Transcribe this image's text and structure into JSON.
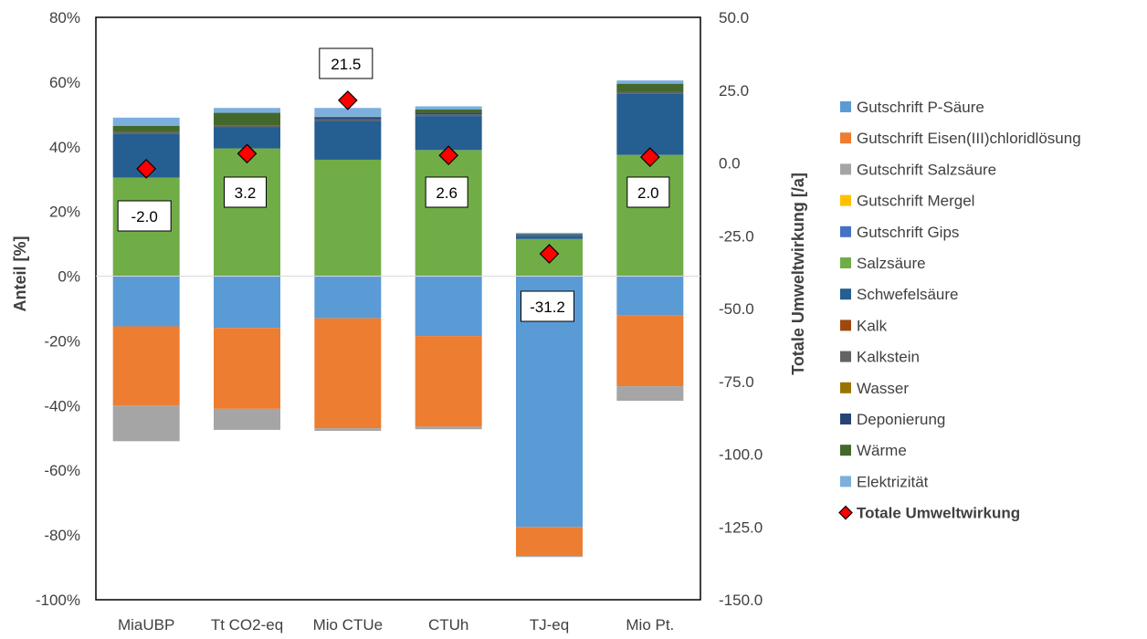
{
  "chart_data": {
    "type": "bar",
    "stacked": true,
    "categories": [
      "MiaUBP",
      "Tt CO2-eq",
      "Mio CTUe",
      "CTUh",
      "TJ-eq",
      "Mio Pt."
    ],
    "ylabel": "Anteil [%]",
    "y2label": "Totale Umweltwirkung [/a]",
    "ylim": [
      -100,
      80
    ],
    "y2lim": [
      -150,
      50
    ],
    "y_ticks": [
      "80%",
      "60%",
      "40%",
      "20%",
      "0%",
      "-20%",
      "-40%",
      "-60%",
      "-80%",
      "-100%"
    ],
    "y2_ticks": [
      "50.0",
      "25.0",
      "0.0",
      "-25.0",
      "-50.0",
      "-75.0",
      "-100.0",
      "-125.0",
      "-150.0"
    ],
    "grid": false,
    "legend_position": "right",
    "series": [
      {
        "name": "Gutschrift P-Säure",
        "color": "#5b9bd5",
        "values": [
          -15.5,
          -16.0,
          -13.0,
          -18.5,
          -77.5,
          -12.0
        ]
      },
      {
        "name": "Gutschrift Eisen(III)chloridlösung",
        "color": "#ed7d31",
        "values": [
          -24.5,
          -25.0,
          -34.0,
          -28.0,
          -9.0,
          -22.0
        ]
      },
      {
        "name": "Gutschrift Salzsäure",
        "color": "#a5a5a5",
        "values": [
          -11.0,
          -6.5,
          -0.8,
          -0.8,
          -0.3,
          -4.5
        ]
      },
      {
        "name": "Gutschrift Mergel",
        "color": "#ffc000",
        "values": [
          0,
          0,
          0,
          0,
          0,
          0
        ]
      },
      {
        "name": "Gutschrift Gips",
        "color": "#4472c4",
        "values": [
          0,
          0,
          0,
          0,
          0,
          0
        ]
      },
      {
        "name": "Salzsäure",
        "color": "#70ad47",
        "values": [
          30.5,
          39.5,
          36.0,
          39.0,
          11.5,
          37.5
        ]
      },
      {
        "name": "Schwefelsäure",
        "color": "#255e91",
        "values": [
          13.5,
          6.5,
          12.0,
          10.5,
          1.0,
          19.0
        ]
      },
      {
        "name": "Kalk",
        "color": "#9e480e",
        "values": [
          0,
          0,
          0,
          0,
          0,
          0
        ]
      },
      {
        "name": "Kalkstein",
        "color": "#636363",
        "values": [
          0.5,
          0.5,
          0.5,
          0.5,
          0.2,
          0.5
        ]
      },
      {
        "name": "Wasser",
        "color": "#997300",
        "values": [
          0,
          0,
          0,
          0,
          0,
          0
        ]
      },
      {
        "name": "Deponierung",
        "color": "#264478",
        "values": [
          0,
          0,
          0.5,
          0.5,
          0.2,
          0
        ]
      },
      {
        "name": "Wärme",
        "color": "#43682b",
        "values": [
          2.0,
          4.0,
          0.3,
          1.0,
          0.1,
          2.5
        ]
      },
      {
        "name": "Elektrizität",
        "color": "#7cafdd",
        "values": [
          2.5,
          1.5,
          2.7,
          1.0,
          0.4,
          1.0
        ]
      }
    ],
    "total_series": {
      "name": "Totale Umweltwirkung",
      "marker_color": "#ff0000",
      "values": [
        -2.0,
        3.2,
        21.5,
        2.6,
        -31.2,
        2.0
      ],
      "labels": [
        "-2.0",
        "3.2",
        "21.5",
        "2.6",
        "-31.2",
        "2.0"
      ]
    }
  }
}
